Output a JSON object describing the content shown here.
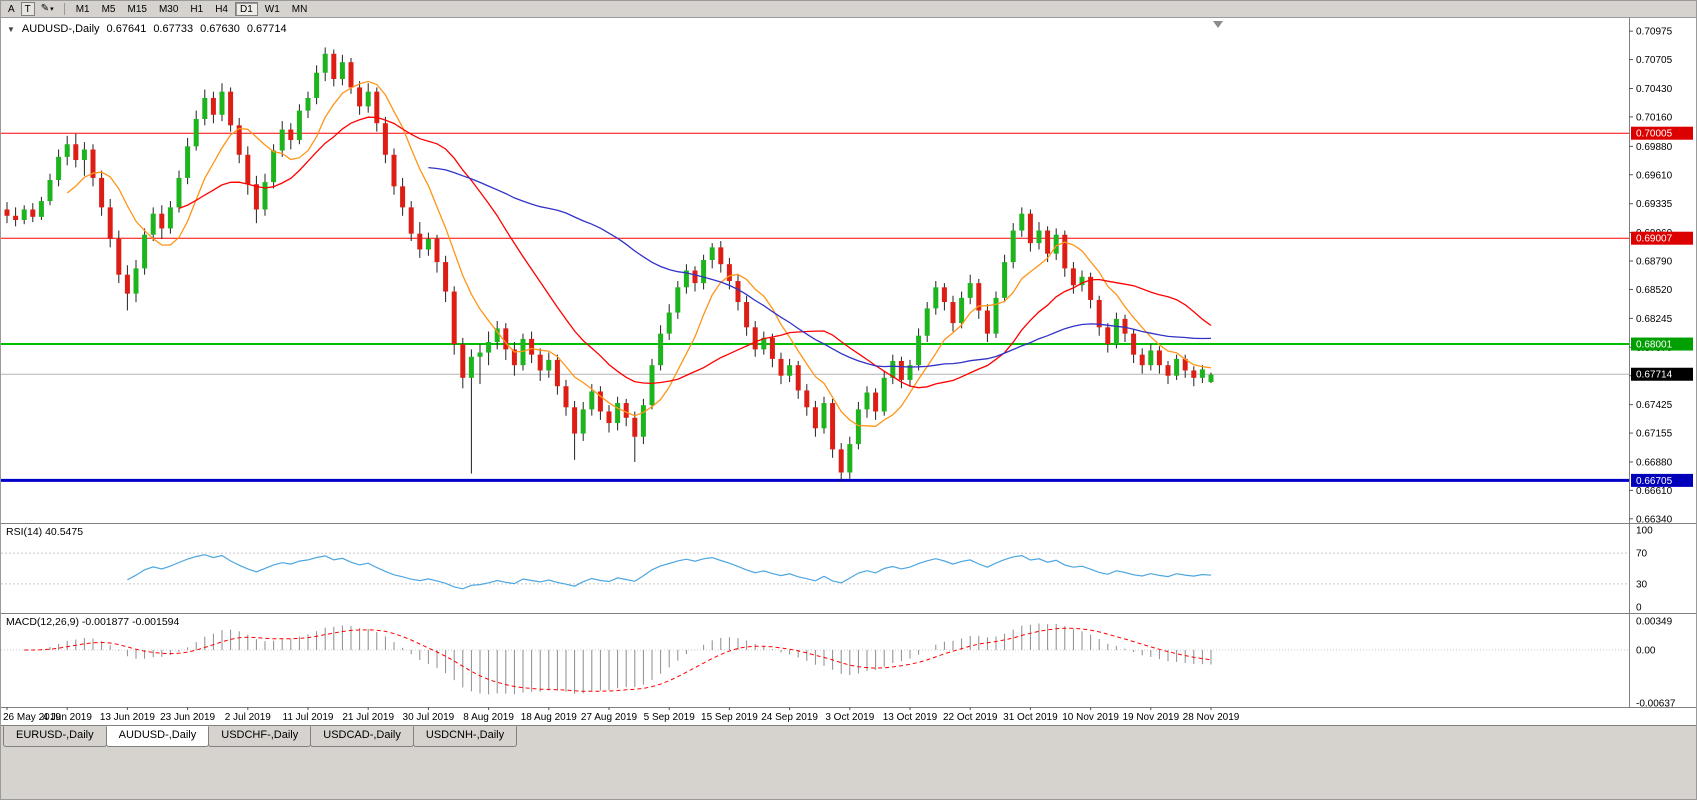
{
  "toolbar": {
    "left_buttons": [
      {
        "label": "A"
      },
      {
        "label": "T"
      }
    ],
    "draw_tool": {
      "icon": "pen-icon",
      "glyph": "✎",
      "caret": "▾"
    },
    "timeframes": [
      "M1",
      "M5",
      "M15",
      "M30",
      "H1",
      "H4",
      "D1",
      "W1",
      "MN"
    ],
    "active_timeframe": "D1"
  },
  "header": {
    "collapse_icon": "▼",
    "symbol": "AUDUSD-,Daily",
    "open": "0.67641",
    "high": "0.67733",
    "low": "0.67630",
    "close": "0.67714"
  },
  "chart_data": {
    "type": "candlestick",
    "symbol": "AUDUSD",
    "timeframe": "Daily",
    "price_scale": {
      "top": 0.711,
      "bottom": 0.663
    },
    "y_ticks": [
      "0.70975",
      "0.70705",
      "0.70430",
      "0.70160",
      "0.69880",
      "0.69610",
      "0.69335",
      "0.69060",
      "0.68790",
      "0.68520",
      "0.68245",
      "0.67970",
      "0.67700",
      "0.67425",
      "0.67155",
      "0.66880",
      "0.66610",
      "0.66340"
    ],
    "x_ticks": [
      "26 May 2019",
      "4 Jun 2019",
      "13 Jun 2019",
      "23 Jun 2019",
      "2 Jul 2019",
      "11 Jul 2019",
      "21 Jul 2019",
      "30 Jul 2019",
      "8 Aug 2019",
      "18 Aug 2019",
      "27 Aug 2019",
      "5 Sep 2019",
      "15 Sep 2019",
      "24 Sep 2019",
      "3 Oct 2019",
      "13 Oct 2019",
      "22 Oct 2019",
      "31 Oct 2019",
      "10 Nov 2019",
      "19 Nov 2019",
      "28 Nov 2019"
    ],
    "x_tick_every": 7,
    "candle_divisor": 10000,
    "colors": {
      "up": "#1db41d",
      "down": "#dc1e14",
      "wick": "#222222"
    },
    "moving_averages": [
      {
        "period": 8,
        "color": "#ff9518"
      },
      {
        "period": 21,
        "color": "#ff0000"
      },
      {
        "period": 50,
        "color": "#3232c8"
      }
    ],
    "hlines": [
      {
        "price": 0.70005,
        "color": "#ff0000",
        "w": 1
      },
      {
        "price": 0.69007,
        "color": "#ff0000",
        "w": 1
      },
      {
        "price": 0.68001,
        "color": "#00c000",
        "w": 2
      },
      {
        "price": 0.66705,
        "color": "#0000c8",
        "w": 3
      },
      {
        "price": 0.67714,
        "color": "#b4b4b4",
        "w": 1
      }
    ],
    "axis_badges": [
      {
        "label": "0.70005",
        "price": 0.70005,
        "bg": "#dd0000"
      },
      {
        "label": "0.69007",
        "price": 0.69007,
        "bg": "#dd0000"
      },
      {
        "label": "0.68001",
        "price": 0.68001,
        "bg": "#00a000"
      },
      {
        "label": "0.67714",
        "price": 0.67714,
        "bg": "#000000"
      },
      {
        "label": "0.66705",
        "price": 0.66705,
        "bg": "#0000bb"
      }
    ],
    "candles": [
      [
        6928,
        6935,
        6915,
        6922
      ],
      [
        6922,
        6930,
        6912,
        6918
      ],
      [
        6918,
        6932,
        6914,
        6928
      ],
      [
        6928,
        6934,
        6916,
        6921
      ],
      [
        6921,
        6940,
        6918,
        6936
      ],
      [
        6936,
        6962,
        6932,
        6956
      ],
      [
        6956,
        6985,
        6950,
        6978
      ],
      [
        6978,
        6998,
        6970,
        6990
      ],
      [
        6990,
        7000,
        6968,
        6975
      ],
      [
        6975,
        6992,
        6960,
        6985
      ],
      [
        6985,
        6990,
        6950,
        6958
      ],
      [
        6958,
        6965,
        6922,
        6930
      ],
      [
        6930,
        6938,
        6892,
        6900
      ],
      [
        6900,
        6908,
        6858,
        6866
      ],
      [
        6866,
        6875,
        6832,
        6848
      ],
      [
        6848,
        6880,
        6840,
        6872
      ],
      [
        6872,
        6910,
        6866,
        6904
      ],
      [
        6904,
        6930,
        6898,
        6924
      ],
      [
        6924,
        6932,
        6900,
        6910
      ],
      [
        6910,
        6936,
        6905,
        6930
      ],
      [
        6930,
        6965,
        6925,
        6958
      ],
      [
        6958,
        6996,
        6952,
        6988
      ],
      [
        6988,
        7022,
        6984,
        7014
      ],
      [
        7014,
        7042,
        7008,
        7034
      ],
      [
        7034,
        7040,
        7010,
        7018
      ],
      [
        7018,
        7048,
        7012,
        7040
      ],
      [
        7040,
        7044,
        7002,
        7008
      ],
      [
        7008,
        7015,
        6972,
        6980
      ],
      [
        6980,
        6988,
        6942,
        6952
      ],
      [
        6952,
        6960,
        6915,
        6928
      ],
      [
        6928,
        6962,
        6922,
        6954
      ],
      [
        6954,
        6990,
        6948,
        6984
      ],
      [
        6984,
        7012,
        6978,
        7004
      ],
      [
        7004,
        7010,
        6985,
        6994
      ],
      [
        6994,
        7028,
        6990,
        7022
      ],
      [
        7022,
        7040,
        7015,
        7034
      ],
      [
        7034,
        7065,
        7028,
        7058
      ],
      [
        7058,
        7082,
        7050,
        7076
      ],
      [
        7076,
        7080,
        7045,
        7052
      ],
      [
        7052,
        7075,
        7046,
        7068
      ],
      [
        7068,
        7072,
        7038,
        7044
      ],
      [
        7044,
        7050,
        7018,
        7026
      ],
      [
        7026,
        7048,
        7020,
        7040
      ],
      [
        7040,
        7044,
        7002,
        7010
      ],
      [
        7010,
        7016,
        6972,
        6980
      ],
      [
        6980,
        6986,
        6942,
        6950
      ],
      [
        6950,
        6958,
        6922,
        6930
      ],
      [
        6930,
        6936,
        6898,
        6905
      ],
      [
        6905,
        6916,
        6882,
        6890
      ],
      [
        6890,
        6906,
        6884,
        6900
      ],
      [
        6900,
        6904,
        6868,
        6878
      ],
      [
        6878,
        6884,
        6840,
        6850
      ],
      [
        6850,
        6855,
        6790,
        6800
      ],
      [
        6800,
        6806,
        6758,
        6768
      ],
      [
        6768,
        6795,
        6677,
        6788
      ],
      [
        6788,
        6800,
        6762,
        6792
      ],
      [
        6792,
        6812,
        6780,
        6802
      ],
      [
        6802,
        6822,
        6795,
        6815
      ],
      [
        6815,
        6820,
        6785,
        6795
      ],
      [
        6795,
        6802,
        6770,
        6780
      ],
      [
        6780,
        6810,
        6775,
        6805
      ],
      [
        6805,
        6812,
        6782,
        6790
      ],
      [
        6790,
        6796,
        6765,
        6775
      ],
      [
        6775,
        6792,
        6768,
        6785
      ],
      [
        6785,
        6790,
        6752,
        6760
      ],
      [
        6760,
        6766,
        6732,
        6740
      ],
      [
        6740,
        6746,
        6690,
        6715
      ],
      [
        6715,
        6745,
        6708,
        6738
      ],
      [
        6738,
        6762,
        6732,
        6755
      ],
      [
        6755,
        6760,
        6728,
        6736
      ],
      [
        6736,
        6742,
        6716,
        6725
      ],
      [
        6725,
        6750,
        6718,
        6744
      ],
      [
        6744,
        6748,
        6722,
        6730
      ],
      [
        6730,
        6736,
        6688,
        6712
      ],
      [
        6712,
        6748,
        6705,
        6742
      ],
      [
        6742,
        6786,
        6738,
        6780
      ],
      [
        6780,
        6818,
        6775,
        6810
      ],
      [
        6810,
        6838,
        6804,
        6830
      ],
      [
        6830,
        6860,
        6824,
        6854
      ],
      [
        6854,
        6876,
        6848,
        6870
      ],
      [
        6870,
        6874,
        6850,
        6858
      ],
      [
        6858,
        6885,
        6852,
        6880
      ],
      [
        6880,
        6896,
        6872,
        6892
      ],
      [
        6892,
        6898,
        6868,
        6876
      ],
      [
        6876,
        6882,
        6852,
        6860
      ],
      [
        6860,
        6866,
        6832,
        6840
      ],
      [
        6840,
        6846,
        6808,
        6816
      ],
      [
        6816,
        6822,
        6788,
        6795
      ],
      [
        6795,
        6812,
        6790,
        6806
      ],
      [
        6806,
        6810,
        6778,
        6786
      ],
      [
        6786,
        6792,
        6762,
        6770
      ],
      [
        6770,
        6786,
        6764,
        6780
      ],
      [
        6780,
        6784,
        6748,
        6756
      ],
      [
        6756,
        6762,
        6732,
        6740
      ],
      [
        6740,
        6746,
        6712,
        6720
      ],
      [
        6720,
        6750,
        6715,
        6744
      ],
      [
        6744,
        6748,
        6692,
        6700
      ],
      [
        6700,
        6706,
        6670,
        6678
      ],
      [
        6678,
        6712,
        6672,
        6705
      ],
      [
        6705,
        6745,
        6700,
        6738
      ],
      [
        6738,
        6760,
        6730,
        6754
      ],
      [
        6754,
        6758,
        6728,
        6736
      ],
      [
        6736,
        6774,
        6732,
        6768
      ],
      [
        6768,
        6790,
        6762,
        6784
      ],
      [
        6784,
        6788,
        6758,
        6766
      ],
      [
        6766,
        6785,
        6760,
        6780
      ],
      [
        6780,
        6815,
        6775,
        6808
      ],
      [
        6808,
        6840,
        6802,
        6834
      ],
      [
        6834,
        6860,
        6828,
        6854
      ],
      [
        6854,
        6858,
        6832,
        6840
      ],
      [
        6840,
        6846,
        6812,
        6820
      ],
      [
        6820,
        6850,
        6815,
        6844
      ],
      [
        6844,
        6866,
        6838,
        6858
      ],
      [
        6858,
        6862,
        6824,
        6832
      ],
      [
        6832,
        6838,
        6802,
        6810
      ],
      [
        6810,
        6850,
        6806,
        6844
      ],
      [
        6844,
        6885,
        6840,
        6878
      ],
      [
        6878,
        6915,
        6872,
        6908
      ],
      [
        6908,
        6930,
        6902,
        6924
      ],
      [
        6924,
        6928,
        6888,
        6896
      ],
      [
        6896,
        6916,
        6890,
        6908
      ],
      [
        6908,
        6912,
        6878,
        6886
      ],
      [
        6886,
        6910,
        6880,
        6904
      ],
      [
        6904,
        6908,
        6864,
        6872
      ],
      [
        6872,
        6878,
        6848,
        6856
      ],
      [
        6856,
        6870,
        6850,
        6864
      ],
      [
        6864,
        6868,
        6834,
        6842
      ],
      [
        6842,
        6846,
        6808,
        6816
      ],
      [
        6816,
        6820,
        6792,
        6800
      ],
      [
        6800,
        6830,
        6796,
        6824
      ],
      [
        6824,
        6828,
        6802,
        6810
      ],
      [
        6810,
        6814,
        6782,
        6790
      ],
      [
        6790,
        6796,
        6772,
        6780
      ],
      [
        6780,
        6800,
        6775,
        6794
      ],
      [
        6794,
        6798,
        6772,
        6780
      ],
      [
        6780,
        6784,
        6762,
        6770
      ],
      [
        6770,
        6790,
        6766,
        6786
      ],
      [
        6786,
        6790,
        6768,
        6775
      ],
      [
        6775,
        6779,
        6760,
        6768
      ],
      [
        6768,
        6780,
        6763,
        6776
      ],
      [
        6764,
        6773,
        6763,
        6771
      ]
    ],
    "rsi": {
      "name": "RSI(14)",
      "value": "40.5475",
      "period": 14,
      "levels": [
        "100",
        "70",
        "30",
        "0"
      ],
      "dashed_levels": [
        70,
        30
      ],
      "line_color": "#4da6e0"
    },
    "macd": {
      "name": "MACD(12,26,9)",
      "value_main": "-0.001877",
      "value_signal": "-0.001594",
      "fast": 12,
      "slow": 26,
      "signal": 9,
      "axis": [
        {
          "label": "0.00349",
          "v": 0.00349
        },
        {
          "label": "0.00",
          "v": 0
        },
        {
          "label": "-0.00637",
          "v": -0.00637
        }
      ],
      "hist_color": "#8c8c8c",
      "signal_color": "#ff0000"
    }
  },
  "tabs": [
    {
      "label": "EURUSD-,Daily",
      "active": false
    },
    {
      "label": "AUDUSD-,Daily",
      "active": true
    },
    {
      "label": "USDCHF-,Daily",
      "active": false
    },
    {
      "label": "USDCAD-,Daily",
      "active": false
    },
    {
      "label": "USDCNH-,Daily",
      "active": false
    }
  ]
}
